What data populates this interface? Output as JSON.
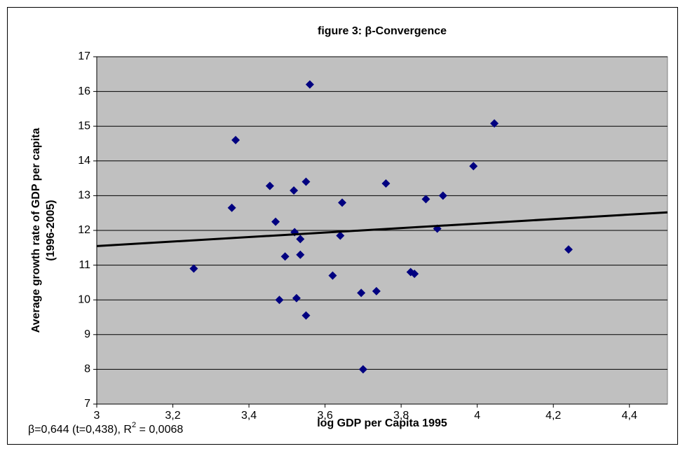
{
  "chart_data": {
    "type": "scatter",
    "title": "figure 3: β-Convergence",
    "xlabel": "log GDP per Capita 1995",
    "ylabel": [
      "Average growth rate of GDP per capita",
      "(1996-2005)"
    ],
    "annotation": [
      "β=0,644 (t=0,438), R",
      "2",
      " = 0,0068"
    ],
    "x": [
      3.255,
      3.355,
      3.365,
      3.455,
      3.47,
      3.48,
      3.495,
      3.518,
      3.52,
      3.525,
      3.535,
      3.535,
      3.55,
      3.55,
      3.56,
      3.62,
      3.64,
      3.645,
      3.695,
      3.7,
      3.735,
      3.76,
      3.825,
      3.835,
      3.865,
      3.895,
      3.91,
      3.99,
      4.045,
      4.24
    ],
    "values": [
      10.9,
      12.65,
      14.6,
      13.28,
      12.25,
      10.0,
      11.25,
      13.15,
      11.95,
      10.05,
      11.75,
      11.3,
      9.55,
      13.4,
      16.2,
      10.7,
      11.85,
      12.8,
      10.2,
      8.0,
      10.25,
      13.35,
      10.8,
      10.75,
      12.9,
      12.05,
      13.0,
      13.85,
      15.08,
      11.45
    ],
    "color": "#000080",
    "trendline": {
      "x": [
        3,
        4.5
      ],
      "values": [
        11.55,
        12.52
      ],
      "color": "#000000"
    },
    "xlim": [
      3,
      4.5
    ],
    "ylim": [
      7,
      17
    ],
    "xticks": [
      3,
      {
        "value": 3.2,
        "label": "3,2"
      },
      {
        "value": 3.4,
        "label": "3,4"
      },
      {
        "value": 3.6,
        "label": "3,6"
      },
      {
        "value": 3.8,
        "label": "3,8"
      },
      4,
      {
        "value": 4.2,
        "label": "4,2"
      },
      {
        "value": 4.4,
        "label": "4,4"
      }
    ],
    "yticks": [
      7,
      8,
      9,
      10,
      11,
      12,
      13,
      14,
      15,
      16,
      17
    ],
    "grid": true,
    "plot_background": "#c0c0c0"
  }
}
